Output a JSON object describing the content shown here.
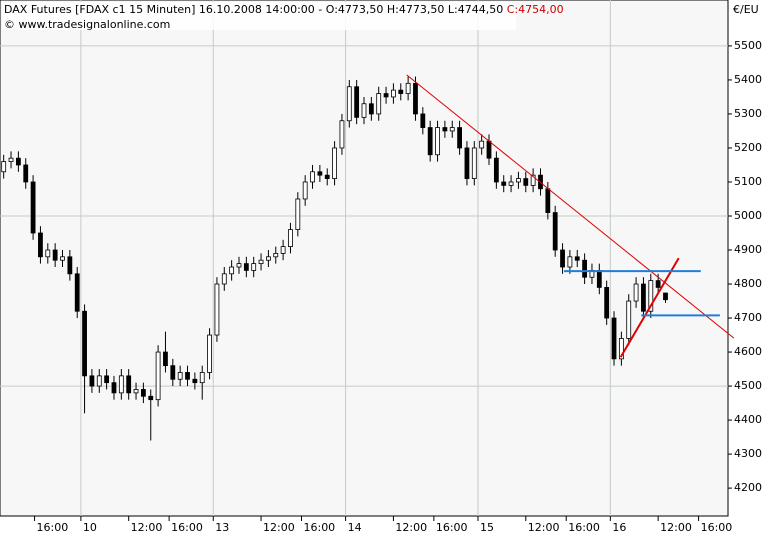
{
  "chart_data": {
    "type": "candlestick",
    "legend_text": "DAX Futures [FDAX c1  15 Minuten] 16.10.2008 14:00:00 - O:4773,50 H:4773,50 L:4744,50 ",
    "close_text": "C:4754,00",
    "close_color": "#cc0000",
    "source": "© www.tradesignalonline.com",
    "y_unit": "€/EU",
    "up_color": "#ffffff",
    "down_color": "#000000",
    "open": [
      5130,
      5160,
      5170,
      5150,
      5100,
      4950,
      4880,
      4900,
      4870,
      4880,
      4830,
      4720,
      4530,
      4500,
      4530,
      4510,
      4480,
      4530,
      4480,
      4490,
      4470,
      4460,
      4600,
      4560,
      4520,
      4540,
      4520,
      4510,
      4540,
      4650,
      4800,
      4830,
      4850,
      4860,
      4840,
      4860,
      4870,
      4880,
      4890,
      4910,
      4960,
      5050,
      5100,
      5130,
      5120,
      5110,
      5200,
      5280,
      5380,
      5290,
      5330,
      5300,
      5360,
      5350,
      5370,
      5360,
      5390,
      5300,
      5260,
      5180,
      5260,
      5250,
      5260,
      5200,
      5110,
      5200,
      5220,
      5170,
      5100,
      5090,
      5100,
      5110,
      5090,
      5120,
      5080,
      5010,
      4900,
      4850,
      4880,
      4870,
      4820,
      4840,
      4790,
      4700,
      4580,
      4640,
      4750,
      4800,
      4720,
      4810,
      4773.5
    ],
    "high": [
      5180,
      5190,
      5190,
      5170,
      5120,
      4970,
      4920,
      4920,
      4900,
      4900,
      4850,
      4740,
      4550,
      4550,
      4550,
      4530,
      4550,
      4550,
      4510,
      4510,
      4490,
      4620,
      4660,
      4580,
      4560,
      4560,
      4540,
      4560,
      4670,
      4820,
      4850,
      4870,
      4880,
      4880,
      4880,
      4890,
      4900,
      4910,
      4930,
      4980,
      5070,
      5120,
      5150,
      5150,
      5140,
      5220,
      5300,
      5400,
      5400,
      5350,
      5350,
      5380,
      5380,
      5390,
      5390,
      5410,
      5410,
      5320,
      5280,
      5280,
      5280,
      5280,
      5280,
      5220,
      5220,
      5240,
      5240,
      5190,
      5120,
      5120,
      5130,
      5130,
      5140,
      5140,
      5100,
      5030,
      4920,
      4900,
      4900,
      4890,
      4860,
      4860,
      4810,
      4720,
      4660,
      4770,
      4820,
      4820,
      4830,
      4830,
      4773.5
    ],
    "low": [
      5110,
      5140,
      5130,
      5080,
      4930,
      4860,
      4860,
      4850,
      4850,
      4810,
      4700,
      4420,
      4480,
      4480,
      4490,
      4460,
      4460,
      4460,
      4460,
      4450,
      4340,
      4440,
      4540,
      4500,
      4500,
      4500,
      4490,
      4460,
      4520,
      4630,
      4780,
      4810,
      4830,
      4820,
      4820,
      4840,
      4850,
      4860,
      4870,
      4890,
      4940,
      5030,
      5080,
      5100,
      5090,
      5090,
      5180,
      5260,
      5270,
      5270,
      5280,
      5280,
      5330,
      5330,
      5340,
      5340,
      5280,
      5240,
      5160,
      5160,
      5230,
      5230,
      5180,
      5090,
      5090,
      5180,
      5150,
      5080,
      5070,
      5070,
      5080,
      5070,
      5070,
      5060,
      4990,
      4880,
      4830,
      4830,
      4850,
      4800,
      4800,
      4770,
      4680,
      4560,
      4560,
      4620,
      4730,
      4700,
      4700,
      4770,
      4744.5
    ],
    "close": [
      5160,
      5170,
      5150,
      5100,
      4950,
      4880,
      4900,
      4870,
      4880,
      4830,
      4720,
      4530,
      4500,
      4530,
      4510,
      4480,
      4530,
      4480,
      4490,
      4470,
      4460,
      4600,
      4560,
      4520,
      4540,
      4520,
      4510,
      4540,
      4650,
      4800,
      4830,
      4850,
      4860,
      4840,
      4860,
      4870,
      4880,
      4890,
      4910,
      4960,
      5050,
      5100,
      5130,
      5120,
      5110,
      5200,
      5280,
      5380,
      5290,
      5330,
      5300,
      5360,
      5350,
      5370,
      5360,
      5390,
      5300,
      5260,
      5180,
      5260,
      5250,
      5260,
      5200,
      5110,
      5200,
      5220,
      5170,
      5100,
      5090,
      5100,
      5110,
      5090,
      5120,
      5080,
      5010,
      4900,
      4850,
      4880,
      4870,
      4820,
      4840,
      4790,
      4700,
      4580,
      4640,
      4750,
      4800,
      4720,
      4810,
      4790,
      4754
    ],
    "xlim": [
      -0.5,
      98.5
    ],
    "ylim": [
      4118,
      5635
    ],
    "yticks": [
      4200,
      4300,
      4400,
      4500,
      4600,
      4700,
      4800,
      4900,
      5000,
      5100,
      5200,
      5300,
      5400,
      5500
    ],
    "ygrid": [
      4500,
      5000,
      5500
    ],
    "xticks": [
      {
        "value": 4.2,
        "label": "16:00"
      },
      {
        "value": 10.5,
        "label": "10"
      },
      {
        "value": 17,
        "label": "12:00"
      },
      {
        "value": 22.5,
        "label": "16:00"
      },
      {
        "value": 28.5,
        "label": "13"
      },
      {
        "value": 35,
        "label": "12:00"
      },
      {
        "value": 40.5,
        "label": "16:00"
      },
      {
        "value": 46.5,
        "label": "14"
      },
      {
        "value": 53,
        "label": "12:00"
      },
      {
        "value": 58.5,
        "label": "16:00"
      },
      {
        "value": 64.5,
        "label": "15"
      },
      {
        "value": 71,
        "label": "12:00"
      },
      {
        "value": 76.5,
        "label": "16:00"
      },
      {
        "value": 82.5,
        "label": "16"
      },
      {
        "value": 89,
        "label": "12:00"
      },
      {
        "value": 94.5,
        "label": "16:00"
      }
    ],
    "xgrid": [
      10.5,
      28.5,
      46.5,
      64.5,
      82.5
    ],
    "trendlines": [
      {
        "color": "#e00000",
        "width": 1,
        "x": [
          54.8,
          99.3
        ],
        "y": [
          5415,
          4641
        ]
      },
      {
        "color": "#e00000",
        "width": 2,
        "x": [
          83.9,
          91.8
        ],
        "y": [
          4585,
          4876
        ]
      },
      {
        "color": "#1f7fd8",
        "width": 2,
        "x": [
          76.2,
          94.8
        ],
        "y": [
          4838,
          4838
        ]
      },
      {
        "color": "#1f7fd8",
        "width": 2,
        "x": [
          86.7,
          97.4
        ],
        "y": [
          4708,
          4708
        ]
      }
    ]
  }
}
